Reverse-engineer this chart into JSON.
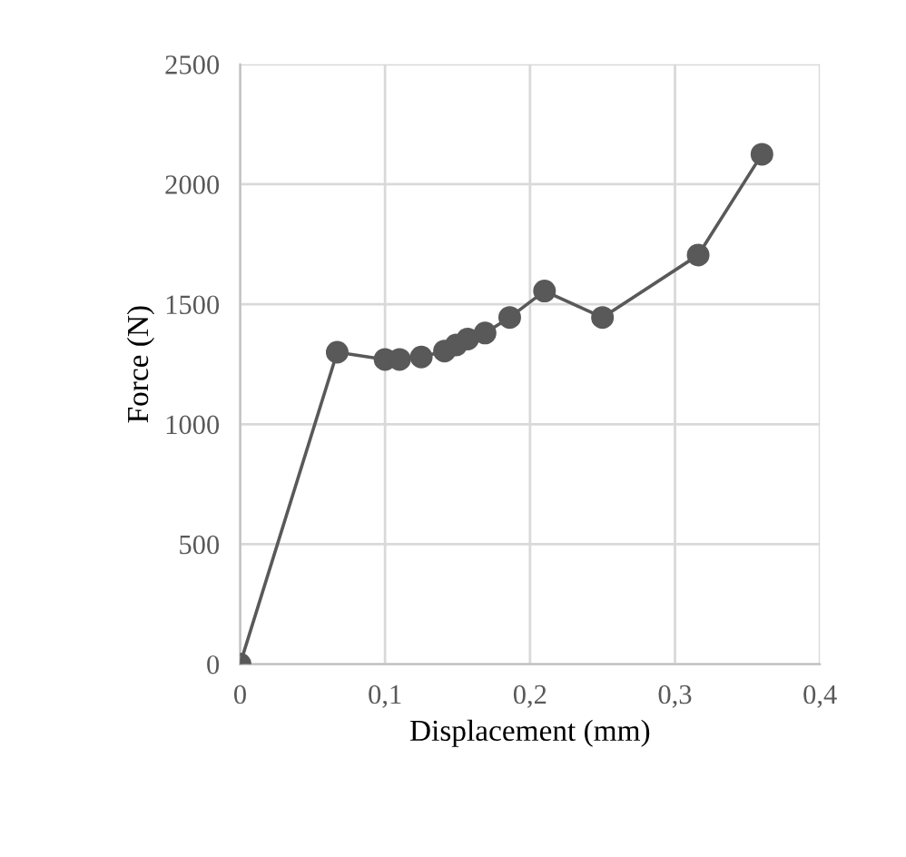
{
  "chart_data": {
    "type": "line",
    "xlabel": "Displacement (mm)",
    "ylabel": "Force (N)",
    "x": [
      0,
      0.067,
      0.1,
      0.11,
      0.125,
      0.141,
      0.149,
      0.157,
      0.169,
      0.186,
      0.21,
      0.25,
      0.316,
      0.36
    ],
    "series": [
      {
        "color": "#595959",
        "values": [
          0,
          1300,
          1270,
          1270,
          1280,
          1305,
          1330,
          1355,
          1380,
          1445,
          1555,
          1445,
          1705,
          2125
        ]
      }
    ],
    "xlim": [
      0,
      0.4
    ],
    "ylim": [
      0,
      2500
    ],
    "xticks": [
      0,
      {
        "value": 0.1,
        "label": "0,1"
      },
      {
        "value": 0.2,
        "label": "0,2"
      },
      {
        "value": 0.3,
        "label": "0,3"
      },
      {
        "value": 0.4,
        "label": "0,4"
      }
    ],
    "yticks": [
      0,
      500,
      1000,
      1500,
      2000,
      2500
    ],
    "grid": true,
    "marker": "circle",
    "line_style": "solid",
    "legend": false
  }
}
